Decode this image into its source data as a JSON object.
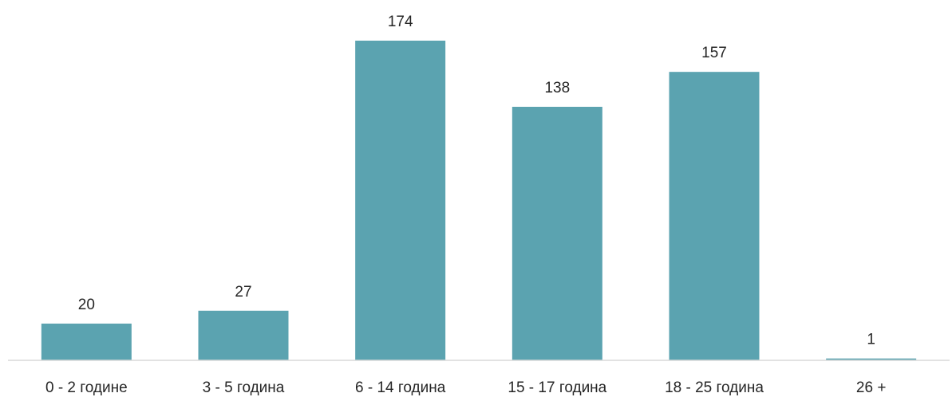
{
  "chart_data": {
    "type": "bar",
    "categories": [
      "0 - 2 године",
      "3 - 5 година",
      "6 - 14 година",
      "15 - 17 година",
      "18 - 25 година",
      "26 +"
    ],
    "values": [
      20,
      27,
      174,
      138,
      157,
      1
    ],
    "title": "",
    "xlabel": "",
    "ylabel": "",
    "ylim": [
      0,
      174
    ],
    "grid": false,
    "legend": "none",
    "colors": {
      "bar": "#5ba3b0",
      "axis": "#d9d9d9",
      "text": "#262626"
    }
  }
}
